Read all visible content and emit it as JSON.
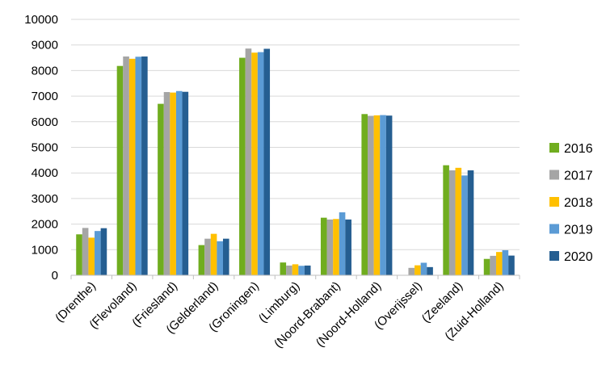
{
  "chart_data": {
    "type": "bar",
    "categories": [
      "(Drenthe)",
      "(Flevoland)",
      "(Friesland)",
      "(Gelderland)",
      "(Groningen)",
      "(Limburg)",
      "(Noord-Brabant)",
      "(Noord-Holland)",
      "(Overijssel)",
      "(Zeeland)",
      "(Zuid-Holland)"
    ],
    "series": [
      {
        "name": "2016",
        "color": "#70ad1f",
        "values": [
          1600,
          8180,
          6700,
          1180,
          8500,
          500,
          2250,
          6300,
          0,
          4300,
          640
        ]
      },
      {
        "name": "2017",
        "color": "#a5a5a5",
        "values": [
          1850,
          8550,
          7160,
          1430,
          8860,
          380,
          2180,
          6230,
          290,
          4100,
          760
        ]
      },
      {
        "name": "2018",
        "color": "#ffc000",
        "values": [
          1470,
          8460,
          7140,
          1620,
          8700,
          430,
          2200,
          6250,
          390,
          4200,
          910
        ]
      },
      {
        "name": "2019",
        "color": "#5b9bd5",
        "values": [
          1730,
          8540,
          7200,
          1330,
          8720,
          370,
          2460,
          6260,
          490,
          3900,
          980
        ]
      },
      {
        "name": "2020",
        "color": "#255e91",
        "values": [
          1840,
          8550,
          7170,
          1430,
          8850,
          380,
          2180,
          6240,
          320,
          4100,
          770
        ]
      }
    ],
    "y_ticks": [
      "0",
      "1000",
      "2000",
      "3000",
      "4000",
      "5000",
      "6000",
      "7000",
      "8000",
      "9000",
      "10000"
    ],
    "ylim": [
      0,
      10000
    ],
    "grid": true,
    "legend_position": "right"
  }
}
